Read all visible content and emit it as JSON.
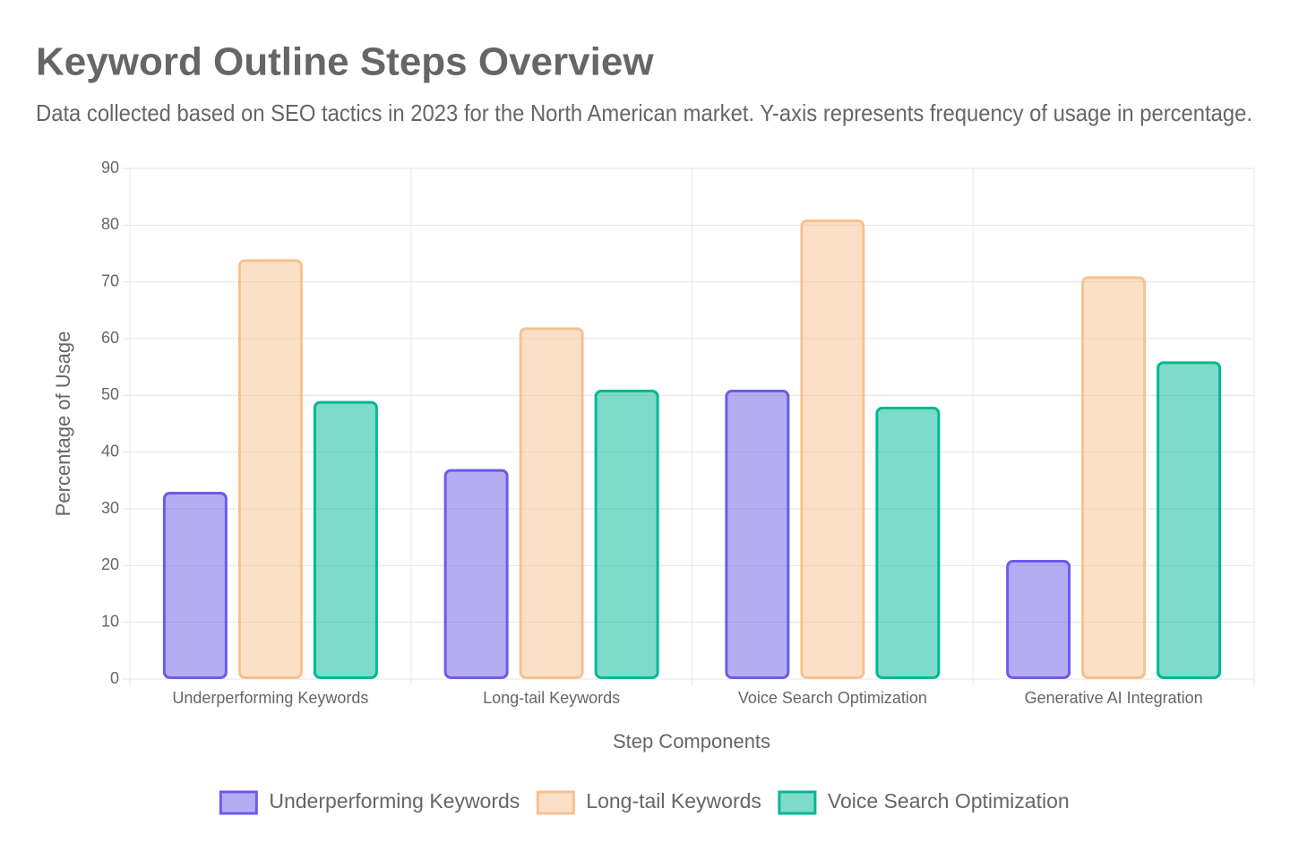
{
  "chart_data": {
    "type": "bar",
    "title": "Keyword Outline Steps Overview",
    "subtitle": "Data collected based on SEO tactics in 2023 for the North American market. Y-axis represents frequency of usage in percentage.",
    "x_label": "Step Components",
    "y_label": "Percentage of Usage",
    "categories": [
      "Underperforming Keywords",
      "Long-tail Keywords",
      "Voice Search Optimization",
      "Generative AI Integration"
    ],
    "series": [
      {
        "name": "Underperforming Keywords",
        "color": "#6c5ce7",
        "values": [
          33,
          37,
          51,
          21
        ]
      },
      {
        "name": "Long-tail Keywords",
        "color": "#f6c28f",
        "values": [
          74,
          62,
          81,
          71
        ]
      },
      {
        "name": "Voice Search Optimization",
        "color": "#00b894",
        "values": [
          49,
          51,
          48,
          56
        ]
      }
    ],
    "ylim": [
      0,
      90
    ],
    "yticks": [
      0,
      10,
      20,
      30,
      40,
      50,
      60,
      70,
      80,
      90
    ],
    "grid": true,
    "legend": "bottom"
  }
}
